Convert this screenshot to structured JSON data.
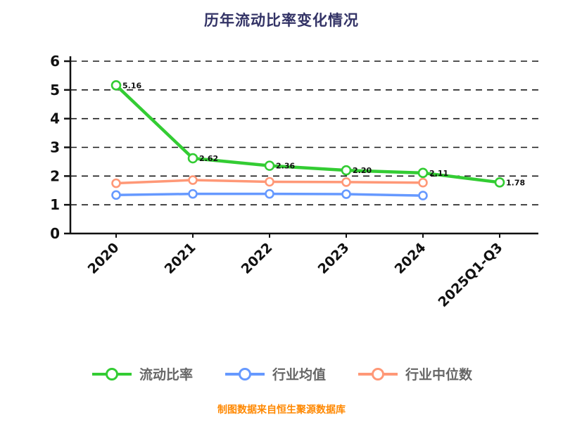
{
  "title": "历年流动比率变化情况",
  "footer": "制图数据来自恒生聚源数据库",
  "colors": {
    "background": "#ffffff",
    "title": "#333366",
    "axis": "#111111",
    "grid": "#1a1a1a",
    "tick_label": "#111111",
    "data_label": "#111111",
    "legend_text": "#666666",
    "footer": "#ff8800"
  },
  "chart_data": {
    "type": "line",
    "title": "历年流动比率变化情况",
    "categories": [
      "2020",
      "2021",
      "2022",
      "2023",
      "2024",
      "2025Q1-Q3"
    ],
    "series": [
      {
        "id": "current-ratio",
        "name": "流动比率",
        "color": "#33cc33",
        "line_width": 4.5,
        "marker_radius": 6,
        "values": [
          5.16,
          2.62,
          2.36,
          2.2,
          2.11,
          1.78
        ],
        "point_labels": [
          "5.16",
          "2.62",
          "2.36",
          "2.20",
          "2.11",
          "1.78"
        ]
      },
      {
        "id": "industry-mean",
        "name": "行业均值",
        "color": "#6699ff",
        "line_width": 3.5,
        "marker_radius": 5.5,
        "values": [
          1.34,
          1.38,
          1.38,
          1.37,
          1.32
        ]
      },
      {
        "id": "industry-median",
        "name": "行业中位数",
        "color": "#ff9877",
        "line_width": 3.5,
        "marker_radius": 5.5,
        "values": [
          1.75,
          1.86,
          1.8,
          1.79,
          1.77
        ]
      }
    ],
    "ylim": [
      0,
      6
    ],
    "yticks": [
      0,
      1,
      2,
      3,
      4,
      5,
      6
    ],
    "xlabel": "",
    "ylabel": "",
    "grid": "horizontal-dashed",
    "legend_position": "bottom",
    "x_tick_rotation": 45
  },
  "legend": {
    "items": [
      {
        "label": "流动比率",
        "color": "#33cc33"
      },
      {
        "label": "行业均值",
        "color": "#6699ff"
      },
      {
        "label": "行业中位数",
        "color": "#ff9877"
      }
    ]
  }
}
